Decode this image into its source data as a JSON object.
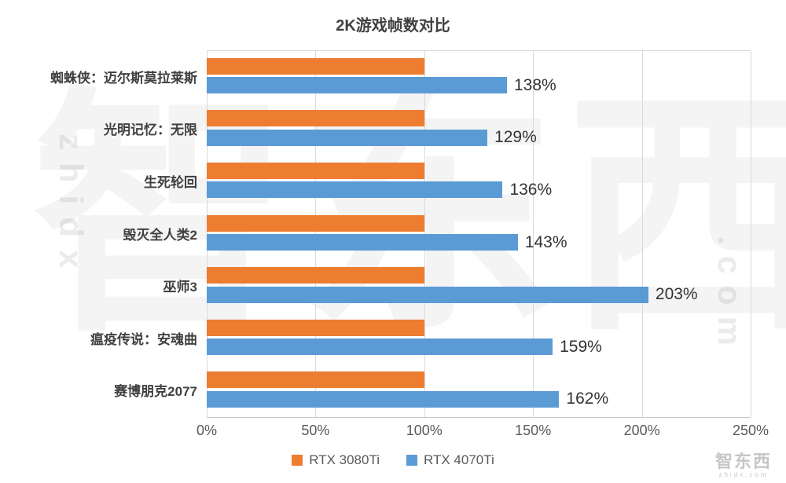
{
  "title": "2K游戏帧数对比",
  "watermark": {
    "main": "智东西",
    "side": "zhidx",
    "right": ".com",
    "corner": "智东西",
    "corner_sub": "zhidx.com"
  },
  "colors": {
    "orange": "#ED7D31",
    "blue": "#5B9BD5",
    "grid": "#D9D9D9",
    "text": "#404040"
  },
  "chart_data": {
    "type": "bar",
    "orientation": "horizontal",
    "title": "2K游戏帧数对比",
    "categories": [
      "蜘蛛侠：迈尔斯莫拉莱斯",
      "光明记忆：无限",
      "生死轮回",
      "毁灭全人类2",
      "巫师3",
      "瘟疫传说：安魂曲",
      "赛博朋克2077"
    ],
    "series": [
      {
        "name": "RTX 3080Ti",
        "color": "#ED7D31",
        "values": [
          100,
          100,
          100,
          100,
          100,
          100,
          100
        ]
      },
      {
        "name": "RTX 4070Ti",
        "color": "#5B9BD5",
        "values": [
          138,
          129,
          136,
          143,
          203,
          159,
          162
        ]
      }
    ],
    "value_labels": [
      "138%",
      "129%",
      "136%",
      "143%",
      "203%",
      "159%",
      "162%"
    ],
    "xlim": [
      0,
      250
    ],
    "xticks": [
      "0%",
      "50%",
      "100%",
      "150%",
      "200%",
      "250%"
    ],
    "xtick_values": [
      0,
      50,
      100,
      150,
      200,
      250
    ],
    "grid": true,
    "legend_position": "bottom"
  }
}
